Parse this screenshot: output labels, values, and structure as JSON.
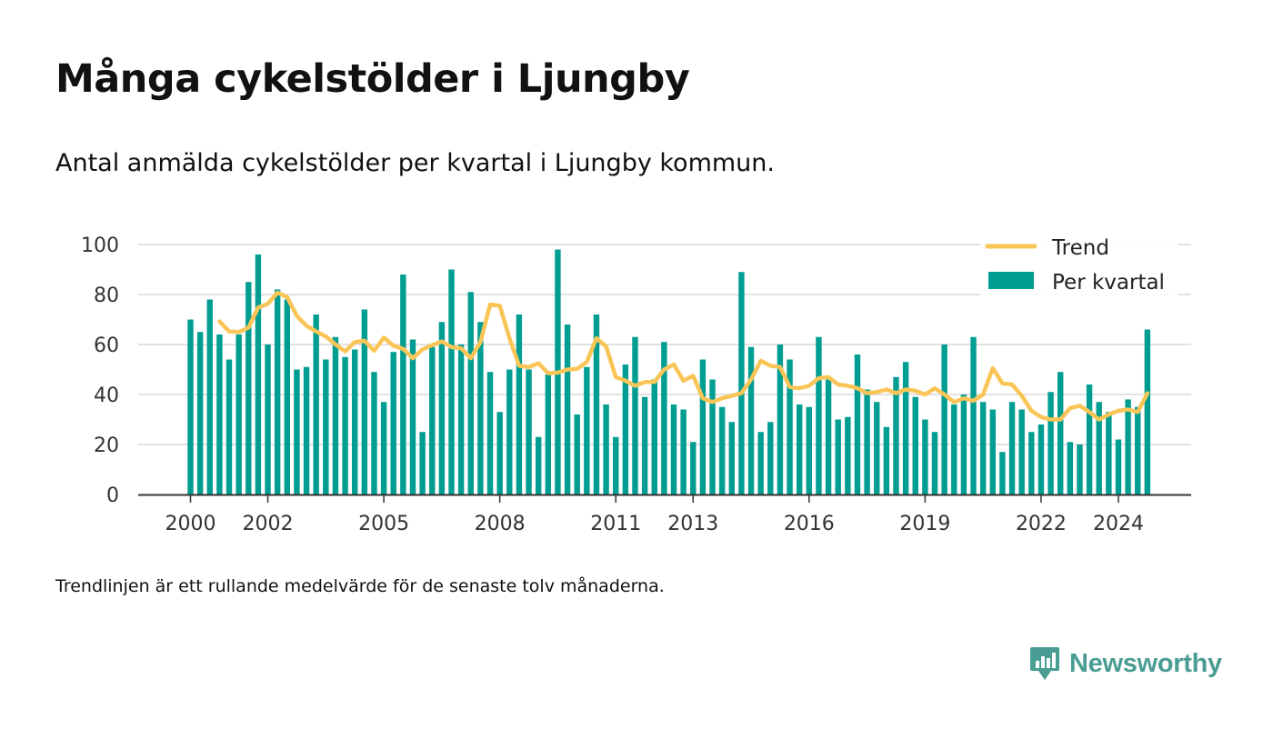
{
  "title": "Många cykelstölder i Ljungby",
  "subtitle": "Antal anmälda cykelstölder per kvartal i Ljungby kommun.",
  "note": "Trendlinjen är ett rullande medelvärde för de senaste tolv månaderna.",
  "brand": {
    "name": "Newsworthy",
    "icon": "newsworthy-logo-icon"
  },
  "colors": {
    "bars": "#009d92",
    "trend": "#f9c557",
    "grid": "#d9d9d9",
    "axis": "#333333"
  },
  "chart_data": {
    "type": "bar",
    "ylim": [
      0,
      100
    ],
    "yticks": [
      0,
      20,
      40,
      60,
      80,
      100
    ],
    "xticks": [
      "2000",
      "2002",
      "2005",
      "2008",
      "2011",
      "2013",
      "2016",
      "2019",
      "2022",
      "2024"
    ],
    "grid": true,
    "legend_position": "top-right",
    "x": [
      "2000 Q1",
      "2000 Q2",
      "2000 Q3",
      "2000 Q4",
      "2001 Q1",
      "2001 Q2",
      "2001 Q3",
      "2001 Q4",
      "2002 Q1",
      "2002 Q2",
      "2002 Q3",
      "2002 Q4",
      "2003 Q1",
      "2003 Q2",
      "2003 Q3",
      "2003 Q4",
      "2004 Q1",
      "2004 Q2",
      "2004 Q3",
      "2004 Q4",
      "2005 Q1",
      "2005 Q2",
      "2005 Q3",
      "2005 Q4",
      "2006 Q1",
      "2006 Q2",
      "2006 Q3",
      "2006 Q4",
      "2007 Q1",
      "2007 Q2",
      "2007 Q3",
      "2007 Q4",
      "2008 Q1",
      "2008 Q2",
      "2008 Q3",
      "2008 Q4",
      "2009 Q1",
      "2009 Q2",
      "2009 Q3",
      "2009 Q4",
      "2010 Q1",
      "2010 Q2",
      "2010 Q3",
      "2010 Q4",
      "2011 Q1",
      "2011 Q2",
      "2011 Q3",
      "2011 Q4",
      "2012 Q1",
      "2012 Q2",
      "2012 Q3",
      "2012 Q4",
      "2013 Q1",
      "2013 Q2",
      "2013 Q3",
      "2013 Q4",
      "2014 Q1",
      "2014 Q2",
      "2014 Q3",
      "2014 Q4",
      "2015 Q1",
      "2015 Q2",
      "2015 Q3",
      "2015 Q4",
      "2016 Q1",
      "2016 Q2",
      "2016 Q3",
      "2016 Q4",
      "2017 Q1",
      "2017 Q2",
      "2017 Q3",
      "2017 Q4",
      "2018 Q1",
      "2018 Q2",
      "2018 Q3",
      "2018 Q4",
      "2019 Q1",
      "2019 Q2",
      "2019 Q3",
      "2019 Q4",
      "2020 Q1",
      "2020 Q2",
      "2020 Q3",
      "2020 Q4",
      "2021 Q1",
      "2021 Q2",
      "2021 Q3",
      "2021 Q4",
      "2022 Q1",
      "2022 Q2",
      "2022 Q3",
      "2022 Q4",
      "2023 Q1",
      "2023 Q2",
      "2023 Q3",
      "2023 Q4",
      "2024 Q1",
      "2024 Q2",
      "2024 Q3",
      "2024 Q4"
    ],
    "series": [
      {
        "name": "Per kvartal",
        "type": "bar",
        "values": [
          70,
          65,
          78,
          64,
          54,
          64,
          85,
          96,
          60,
          82,
          78,
          50,
          51,
          72,
          54,
          63,
          55,
          58,
          74,
          49,
          37,
          57,
          88,
          62,
          25,
          59,
          69,
          90,
          60,
          81,
          69,
          49,
          33,
          50,
          72,
          50,
          23,
          48,
          98,
          68,
          32,
          51,
          72,
          36,
          23,
          52,
          63,
          39,
          46,
          61,
          36,
          34,
          21,
          54,
          46,
          35,
          29,
          89,
          59,
          25,
          29,
          60,
          54,
          36,
          35,
          63,
          46,
          30,
          31,
          56,
          42,
          37,
          27,
          47,
          53,
          39,
          30,
          25,
          60,
          36,
          40,
          63,
          37,
          34,
          17,
          37,
          34,
          25,
          28,
          41,
          49,
          21,
          20,
          44,
          37,
          33,
          22,
          38,
          35,
          66
        ]
      },
      {
        "name": "Trend",
        "type": "line",
        "values": [
          null,
          null,
          null,
          69.25,
          65.25,
          65,
          66.75,
          74.75,
          76.25,
          80.75,
          79,
          71.5,
          67.5,
          65.25,
          63.25,
          60,
          57.25,
          61,
          61.5,
          57.5,
          62.75,
          59.5,
          58.25,
          54.5,
          58,
          59.75,
          61.25,
          59,
          58.5,
          54.5,
          61,
          76,
          75.5,
          62.5,
          51.5,
          51,
          52.5,
          48.5,
          48.75,
          50,
          50.25,
          53,
          62.5,
          59.25,
          47,
          45.5,
          43.5,
          45,
          45,
          50,
          52,
          45.5,
          47.5,
          38.5,
          37,
          38.5,
          39.5,
          40.5,
          46,
          53.5,
          51.5,
          51,
          43,
          42.5,
          43.5,
          46.5,
          47,
          44,
          43.5,
          42.5,
          40.5,
          41,
          42,
          40.5,
          42,
          41.5,
          40,
          42.5,
          40,
          37,
          38.5,
          37.5,
          40,
          50.5,
          44.5,
          44,
          39.5,
          33.5,
          31,
          30,
          30,
          34.5,
          35.5,
          33,
          30,
          32,
          33.5,
          34,
          33,
          40.5
        ]
      }
    ]
  }
}
